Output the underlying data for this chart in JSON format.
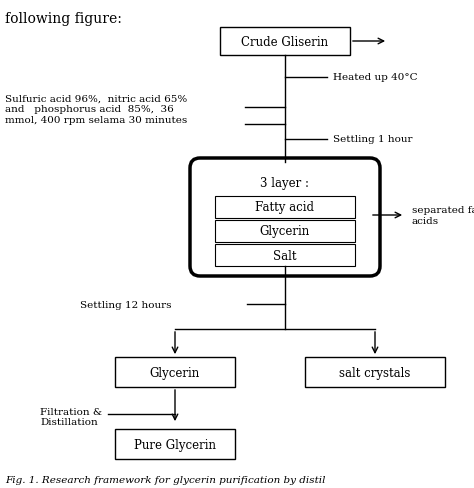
{
  "background_color": "#ffffff",
  "title_top": "following figure:",
  "fig_caption": "Fig. 1. Research framework for glycerin purification by distil",
  "ann_heated": "Heated up 40°C",
  "ann_settling1": "Settling 1 hour",
  "ann_settling12": "Settling 12 hours",
  "ann_separated": "separated fatty\nacids",
  "ann_sulfuric": "Sulfuric acid 96%,  nitric acid 65%\nand   phosphorus acid  85%,  36\nmmol, 400 rpm selama 30 minutes",
  "ann_filtration": "Filtration &\nDistillation",
  "label_crude": "Crude Gliserin",
  "label_3layer": "3 layer :",
  "label_fatty": "Fatty acid",
  "label_glycerin_layer": "Glycerin",
  "label_salt_layer": "Salt",
  "label_glycerin": "Glycerin",
  "label_salt_crystals": "salt crystals",
  "label_pure": "Pure Glycerin",
  "font_size": 8.5,
  "font_size_small": 7.5,
  "font_size_title": 10
}
